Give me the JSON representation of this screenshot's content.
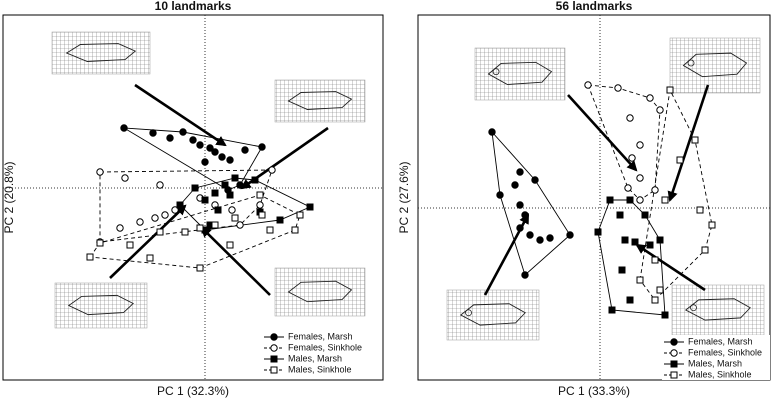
{
  "chart_data": [
    {
      "type": "scatter",
      "title": "10 landmarks",
      "x_label": "PC 1 (32.3%)",
      "y_label": "PC 2 (20.8%)",
      "xlim": [
        -2.02,
        1.78
      ],
      "ylim": [
        -1.92,
        1.73
      ],
      "series": [
        {
          "name": "Females, Marsh",
          "color": "#000000",
          "marker": "circle",
          "filled": true,
          "hull": "solid",
          "x": [
            -0.81,
            -0.52,
            -0.22,
            -0.12,
            -0.05,
            0.05,
            0.1,
            0.17,
            0.25,
            0.4,
            0.57,
            0.35,
            0.23,
            -0.35,
            0.0
          ],
          "values": [
            0.6,
            0.55,
            0.56,
            0.48,
            0.43,
            0.4,
            0.36,
            0.31,
            0.28,
            0.38,
            0.41,
            0.03,
            -0.02,
            0.5,
            0.26
          ]
        },
        {
          "name": "Females, Sinkhole",
          "color": "#000000",
          "marker": "circle",
          "filled": false,
          "hull": "dashed",
          "x": [
            -1.05,
            -0.8,
            -0.45,
            -0.3,
            -0.5,
            -0.65,
            -0.85,
            -1.05,
            -0.4,
            -0.05,
            0.1,
            0.27,
            0.55,
            0.35,
            0.67
          ],
          "values": [
            0.16,
            0.1,
            0.03,
            -0.22,
            -0.3,
            -0.34,
            -0.4,
            -0.54,
            -0.27,
            -0.1,
            -0.17,
            -0.22,
            -0.17,
            -0.37,
            0.18
          ]
        },
        {
          "name": "Males, Marsh",
          "color": "#000000",
          "marker": "square",
          "filled": true,
          "hull": "solid",
          "x": [
            -0.25,
            -0.1,
            0.0,
            0.1,
            0.2,
            0.25,
            0.13,
            0.05,
            0.3,
            0.5,
            0.55,
            1.05,
            0.75,
            0.0
          ],
          "values": [
            -0.17,
            0.0,
            -0.12,
            -0.05,
            0.03,
            -0.07,
            -0.22,
            -0.37,
            0.1,
            0.08,
            -0.24,
            -0.19,
            -0.32,
            -0.42
          ]
        },
        {
          "name": "Males, Sinkhole",
          "color": "#000000",
          "marker": "square",
          "filled": false,
          "hull": "dashed",
          "x": [
            -1.15,
            -1.05,
            -0.75,
            -0.45,
            -0.2,
            -0.05,
            0.1,
            0.3,
            0.57,
            0.65,
            0.9,
            0.95,
            0.55,
            0.25,
            -0.05,
            -0.55
          ],
          "values": [
            -0.69,
            -0.55,
            -0.57,
            -0.44,
            -0.44,
            -0.4,
            -0.37,
            -0.3,
            -0.27,
            -0.42,
            -0.42,
            -0.27,
            -0.07,
            -0.57,
            -0.8,
            -0.7
          ]
        }
      ]
    },
    {
      "type": "scatter",
      "title": "56 landmarks",
      "x_label": "PC 1 (33.3%)",
      "y_label": "PC 2 (27.6%)",
      "xlim": [
        -1.82,
        1.7
      ],
      "ylim": [
        -1.72,
        1.93
      ],
      "series": [
        {
          "name": "Females, Marsh",
          "color": "#000000",
          "marker": "circle",
          "filled": true,
          "hull": "solid",
          "x": [
            -1.08,
            -1.0,
            -0.85,
            -0.8,
            -0.75,
            -0.8,
            -0.7,
            -0.6,
            -0.5,
            -0.75,
            -0.3,
            -0.65,
            -0.8
          ],
          "values": [
            0.76,
            0.13,
            0.23,
            0.03,
            -0.07,
            -0.2,
            -0.27,
            -0.32,
            -0.3,
            -0.67,
            -0.27,
            0.28,
            0.36
          ]
        },
        {
          "name": "Females, Sinkhole",
          "color": "#000000",
          "marker": "circle",
          "filled": false,
          "hull": "dashed",
          "x": [
            -0.12,
            0.18,
            0.3,
            0.5,
            0.4,
            0.32,
            0.28,
            0.4,
            0.55,
            0.6,
            0.4
          ],
          "values": [
            1.23,
            1.2,
            0.9,
            1.1,
            0.63,
            0.5,
            0.2,
            0.3,
            0.18,
            0.98,
            0.08
          ]
        },
        {
          "name": "Males, Marsh",
          "color": "#000000",
          "marker": "square",
          "filled": true,
          "hull": "solid",
          "x": [
            -0.02,
            0.1,
            0.2,
            0.25,
            0.35,
            0.3,
            0.5,
            0.6,
            0.45,
            0.22,
            0.3,
            0.65,
            0.12
          ],
          "values": [
            -0.24,
            0.08,
            -0.07,
            -0.32,
            -0.34,
            0.08,
            -0.37,
            -0.32,
            -0.07,
            -0.62,
            -0.92,
            -1.07,
            -1.02
          ]
        },
        {
          "name": "Males, Sinkhole",
          "color": "#000000",
          "marker": "square",
          "filled": false,
          "hull": "dashed",
          "x": [
            0.7,
            0.95,
            1.0,
            1.12,
            1.05,
            0.65,
            0.55,
            0.6,
            0.55,
            0.4,
            0.8
          ],
          "values": [
            1.18,
            0.68,
            -0.02,
            -0.17,
            -0.42,
            0.08,
            -0.52,
            -0.82,
            -0.92,
            -0.72,
            0.48
          ]
        }
      ]
    }
  ]
}
